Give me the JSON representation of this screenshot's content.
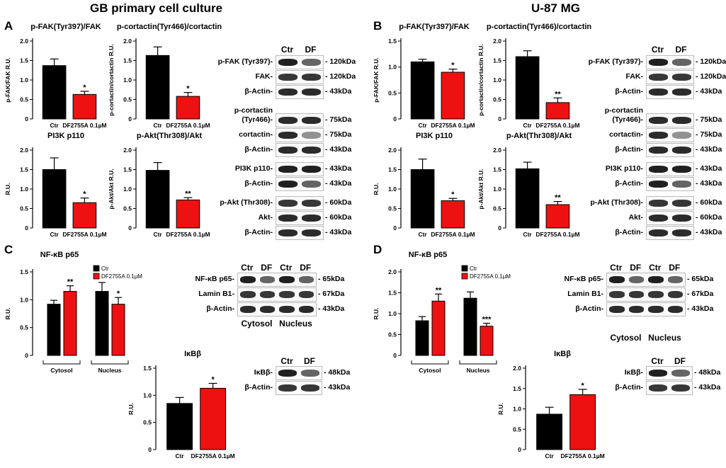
{
  "figure": {
    "titles": {
      "left": "GB primary cell culture",
      "right": "U-87 MG"
    },
    "panels": {
      "A": "A",
      "B": "B",
      "C": "C",
      "D": "D"
    },
    "colors": {
      "control": "#000000",
      "treatment": "#ee1111"
    },
    "blot_lanes": {
      "ctr": "Ctr",
      "df": "DF"
    },
    "fraction_labels": {
      "cytosol": "Cytosol",
      "nucleus": "Nucleus"
    }
  },
  "chart_data": [
    {
      "id": "A1",
      "type": "bar",
      "title": "p-FAK(Tyr397)/FAK",
      "ylabel": "p-FAK/FAK R.U.",
      "categories": [
        "Ctr",
        "DF2755A 0.1µM"
      ],
      "values": [
        1.37,
        0.63
      ],
      "errors": [
        0.17,
        0.08
      ],
      "significance": [
        "",
        "*"
      ],
      "ylim": [
        0,
        2
      ],
      "yticks": [
        0,
        0.5,
        1.0,
        1.5,
        2.0
      ],
      "ytick_labels": [
        "0",
        "0.5",
        "1.0",
        "1.5",
        "2.0"
      ]
    },
    {
      "id": "A2",
      "type": "bar",
      "title": "p-cortactin(Tyr466)/cortactin",
      "ylabel": "p-cortactin/cortactin R.U.",
      "categories": [
        "Ctr",
        "DF2755A 0.1µM"
      ],
      "values": [
        1.63,
        0.58
      ],
      "errors": [
        0.22,
        0.1
      ],
      "significance": [
        "",
        "*"
      ],
      "ylim": [
        0,
        2
      ],
      "yticks": [
        0,
        0.5,
        1.0,
        1.5,
        2.0
      ],
      "ytick_labels": [
        "0",
        "0.5",
        "1.0",
        "1.5",
        "2.0"
      ]
    },
    {
      "id": "A3",
      "type": "bar",
      "title": "PI3K p110",
      "ylabel": "R.U.",
      "categories": [
        "Ctr",
        "DF2755A 0.1µM"
      ],
      "values": [
        1.5,
        0.65
      ],
      "errors": [
        0.3,
        0.12
      ],
      "significance": [
        "",
        "*"
      ],
      "ylim": [
        0,
        2
      ],
      "yticks": [
        0,
        0.5,
        1.0,
        1.5,
        2.0
      ],
      "ytick_labels": [
        "0",
        "0.5",
        "1.0",
        "1.5",
        "2.0"
      ]
    },
    {
      "id": "A4",
      "type": "bar",
      "title": "p-Akt(Thr308)/Akt",
      "ylabel": "p-Akt/Akt R.U.",
      "categories": [
        "Ctr",
        "DF2755A 0.1µM"
      ],
      "values": [
        1.48,
        0.72
      ],
      "errors": [
        0.2,
        0.06
      ],
      "significance": [
        "",
        "**"
      ],
      "ylim": [
        0,
        2
      ],
      "yticks": [
        0,
        0.5,
        1.0,
        1.5,
        2.0
      ],
      "ytick_labels": [
        "0",
        "0.5",
        "1.0",
        "1.5",
        "2.0"
      ]
    },
    {
      "id": "B1",
      "type": "bar",
      "title": "p-FAK(Tyr397)/FAK",
      "ylabel": "p-FAK/FAK R.U.",
      "categories": [
        "Ctr",
        "DF2755A 0.1µM"
      ],
      "values": [
        1.1,
        0.9
      ],
      "errors": [
        0.05,
        0.06
      ],
      "significance": [
        "",
        "*"
      ],
      "ylim": [
        0,
        1.5
      ],
      "yticks": [
        0,
        0.5,
        1.0,
        1.5
      ],
      "ytick_labels": [
        "0",
        "0.5",
        "1.0",
        "1.5"
      ]
    },
    {
      "id": "B2",
      "type": "bar",
      "title": "p-cortactin(Tyr466)/cortactin",
      "ylabel": "p-cortactin/cortactin R.U.",
      "categories": [
        "Ctr",
        "DF2755A 0.1µM"
      ],
      "values": [
        1.6,
        0.42
      ],
      "errors": [
        0.15,
        0.12
      ],
      "significance": [
        "",
        "**"
      ],
      "ylim": [
        0,
        2
      ],
      "yticks": [
        0,
        0.5,
        1.0,
        1.5,
        2.0
      ],
      "ytick_labels": [
        "0",
        "0.5",
        "1.0",
        "1.5",
        "2.0"
      ]
    },
    {
      "id": "B3",
      "type": "bar",
      "title": "PI3K p110",
      "ylabel": "R.U.",
      "categories": [
        "Ctr",
        "DF2755A 0.1µM"
      ],
      "values": [
        1.5,
        0.7
      ],
      "errors": [
        0.27,
        0.06
      ],
      "significance": [
        "",
        "*"
      ],
      "ylim": [
        0,
        2
      ],
      "yticks": [
        0,
        0.5,
        1.0,
        1.5,
        2.0
      ],
      "ytick_labels": [
        "0",
        "0.5",
        "1.0",
        "1.5",
        "2.0"
      ]
    },
    {
      "id": "B4",
      "type": "bar",
      "title": "p-Akt(Thr308)/Akt",
      "ylabel": "p-Akt/Akt R.U.",
      "categories": [
        "Ctr",
        "DF2755A 0.1µM"
      ],
      "values": [
        1.52,
        0.6
      ],
      "errors": [
        0.17,
        0.08
      ],
      "significance": [
        "",
        "**"
      ],
      "ylim": [
        0,
        2
      ],
      "yticks": [
        0,
        0.5,
        1.0,
        1.5,
        2.0
      ],
      "ytick_labels": [
        "0",
        "0.5",
        "1.0",
        "1.5",
        "2.0"
      ]
    },
    {
      "id": "C1",
      "type": "bar",
      "title": "NF-κB p65",
      "ylabel": "R.U.",
      "groups": [
        "Cytosol",
        "Nucleus"
      ],
      "legend": [
        "Ctr",
        "DF2755A 0.1µM"
      ],
      "series": [
        {
          "name": "Ctr",
          "values": [
            0.92,
            1.15
          ],
          "errors": [
            0.07,
            0.16
          ]
        },
        {
          "name": "DF2755A 0.1µM",
          "values": [
            1.15,
            0.92
          ],
          "errors": [
            0.1,
            0.12
          ]
        }
      ],
      "significance": {
        "Ctr": [
          "",
          ""
        ],
        "DF2755A 0.1µM": [
          "**",
          "*"
        ]
      },
      "ylim": [
        0,
        1.5
      ],
      "yticks": [
        0,
        0.5,
        1.0,
        1.5
      ],
      "ytick_labels": [
        "0",
        "0.5",
        "1.0",
        "1.5"
      ]
    },
    {
      "id": "C2",
      "type": "bar",
      "title": "IκBβ",
      "ylabel": "R.U.",
      "categories": [
        "Ctr",
        "DF2755A 0.1µM"
      ],
      "values": [
        0.85,
        1.13
      ],
      "errors": [
        0.11,
        0.09
      ],
      "significance": [
        "",
        "*"
      ],
      "ylim": [
        0,
        1.5
      ],
      "yticks": [
        0,
        0.5,
        1.0,
        1.5
      ],
      "ytick_labels": [
        "0",
        "0.5",
        "1.0",
        "1.5"
      ]
    },
    {
      "id": "D1",
      "type": "bar",
      "title": "NF-κB p65",
      "ylabel": "R.U.",
      "groups": [
        "Cytosol",
        "Nucleus"
      ],
      "legend": [
        "Ctr",
        "DF2755A 0.1µM"
      ],
      "series": [
        {
          "name": "Ctr",
          "values": [
            0.83,
            1.37
          ],
          "errors": [
            0.1,
            0.15
          ]
        },
        {
          "name": "DF2755A 0.1µM",
          "values": [
            1.3,
            0.7
          ],
          "errors": [
            0.17,
            0.07
          ]
        }
      ],
      "significance": {
        "Ctr": [
          "",
          ""
        ],
        "DF2755A 0.1µM": [
          "**",
          "***"
        ]
      },
      "ylim": [
        0,
        2
      ],
      "yticks": [
        0,
        0.5,
        1.0,
        1.5,
        2.0
      ],
      "ytick_labels": [
        "0",
        "0.5",
        "1.0",
        "1.5",
        "2.0"
      ]
    },
    {
      "id": "D2",
      "type": "bar",
      "title": "IκBβ",
      "ylabel": "R.U.",
      "categories": [
        "Ctr",
        "DF2755A 0.1µM"
      ],
      "values": [
        0.87,
        1.35
      ],
      "errors": [
        0.17,
        0.13
      ],
      "significance": [
        "",
        "*"
      ],
      "ylim": [
        0,
        2
      ],
      "yticks": [
        0,
        0.5,
        1.0,
        1.5,
        2.0
      ],
      "ytick_labels": [
        "0",
        "0.5",
        "1.0",
        "1.5",
        "2.0"
      ]
    }
  ],
  "blots": {
    "A": {
      "headers": [
        "Ctr",
        "DF"
      ],
      "groups": [
        {
          "rows": [
            {
              "label": "p-FAK (Tyr397)-",
              "mw": "- 120kDa"
            },
            {
              "label": "FAK-",
              "mw": "- 120kDa"
            },
            {
              "label": "β-Actin-",
              "mw": "- 43kDa"
            }
          ]
        },
        {
          "rows": [
            {
              "label": "p-cortactin",
              "mw": ""
            },
            {
              "label": "(Tyr466)-",
              "mw": "- 75kDa"
            },
            {
              "label": "cortactin-",
              "mw": "- 75kDa"
            },
            {
              "label": "β-Actin-",
              "mw": "- 43kDa"
            }
          ]
        },
        {
          "rows": [
            {
              "label": "PI3K p110-",
              "mw": "- 43kDa"
            },
            {
              "label": "β-Actin-",
              "mw": "- 43kDa"
            }
          ]
        },
        {
          "rows": [
            {
              "label": "p-Akt (Thr308)-",
              "mw": "- 60kDa"
            },
            {
              "label": "Akt-",
              "mw": "- 60kDa"
            },
            {
              "label": "β-Actin-",
              "mw": "- 43kDa"
            }
          ]
        }
      ]
    },
    "B": {
      "headers": [
        "Ctr",
        "DF"
      ],
      "groups": [
        {
          "rows": [
            {
              "label": "p-FAK (Tyr397)-",
              "mw": "- 120kDa"
            },
            {
              "label": "FAK-",
              "mw": "- 120kDa"
            },
            {
              "label": "β-Actin-",
              "mw": "- 43kDa"
            }
          ]
        },
        {
          "rows": [
            {
              "label": "p-cortactin",
              "mw": ""
            },
            {
              "label": "(Tyr466)-",
              "mw": "- 75kDa"
            },
            {
              "label": "cortactin-",
              "mw": "- 75kDa"
            },
            {
              "label": "β-Actin-",
              "mw": "- 43kDa"
            }
          ]
        },
        {
          "rows": [
            {
              "label": "PI3K p110-",
              "mw": "- 43kDa"
            },
            {
              "label": "β-Actin-",
              "mw": "- 43kDa"
            }
          ]
        },
        {
          "rows": [
            {
              "label": "p-Akt (Thr308)-",
              "mw": "- 60kDa"
            },
            {
              "label": "Akt-",
              "mw": "- 60kDa"
            },
            {
              "label": "β-Actin-",
              "mw": "- 43kDa"
            }
          ]
        }
      ]
    },
    "C_nf": {
      "headers": [
        "Ctr",
        "DF",
        "Ctr",
        "DF"
      ],
      "rows": [
        {
          "label": "NF-κB p65-",
          "mw": "- 65kDa"
        },
        {
          "label": "Lamin B1-",
          "mw": "- 67kDa"
        },
        {
          "label": "β-Actin-",
          "mw": "- 43kDa"
        }
      ]
    },
    "C_ikb": {
      "headers": [
        "Ctr",
        "DF"
      ],
      "rows": [
        {
          "label": "IκBβ-",
          "mw": "- 48kDa"
        },
        {
          "label": "β-Actin-",
          "mw": "- 43kDa"
        }
      ]
    },
    "D_nf": {
      "headers": [
        "Ctr",
        "DF",
        "Ctr",
        "DF"
      ],
      "rows": [
        {
          "label": "NF-κB p65-",
          "mw": "- 65kDa"
        },
        {
          "label": "Lamin B1-",
          "mw": "- 67kDa"
        },
        {
          "label": "β-Actin-",
          "mw": "- 43kDa"
        }
      ]
    },
    "D_ikb": {
      "headers": [
        "Ctr",
        "DF"
      ],
      "rows": [
        {
          "label": "IκBβ-",
          "mw": "- 48kDa"
        },
        {
          "label": "β-Actin-",
          "mw": "- 43kDa"
        }
      ]
    }
  }
}
